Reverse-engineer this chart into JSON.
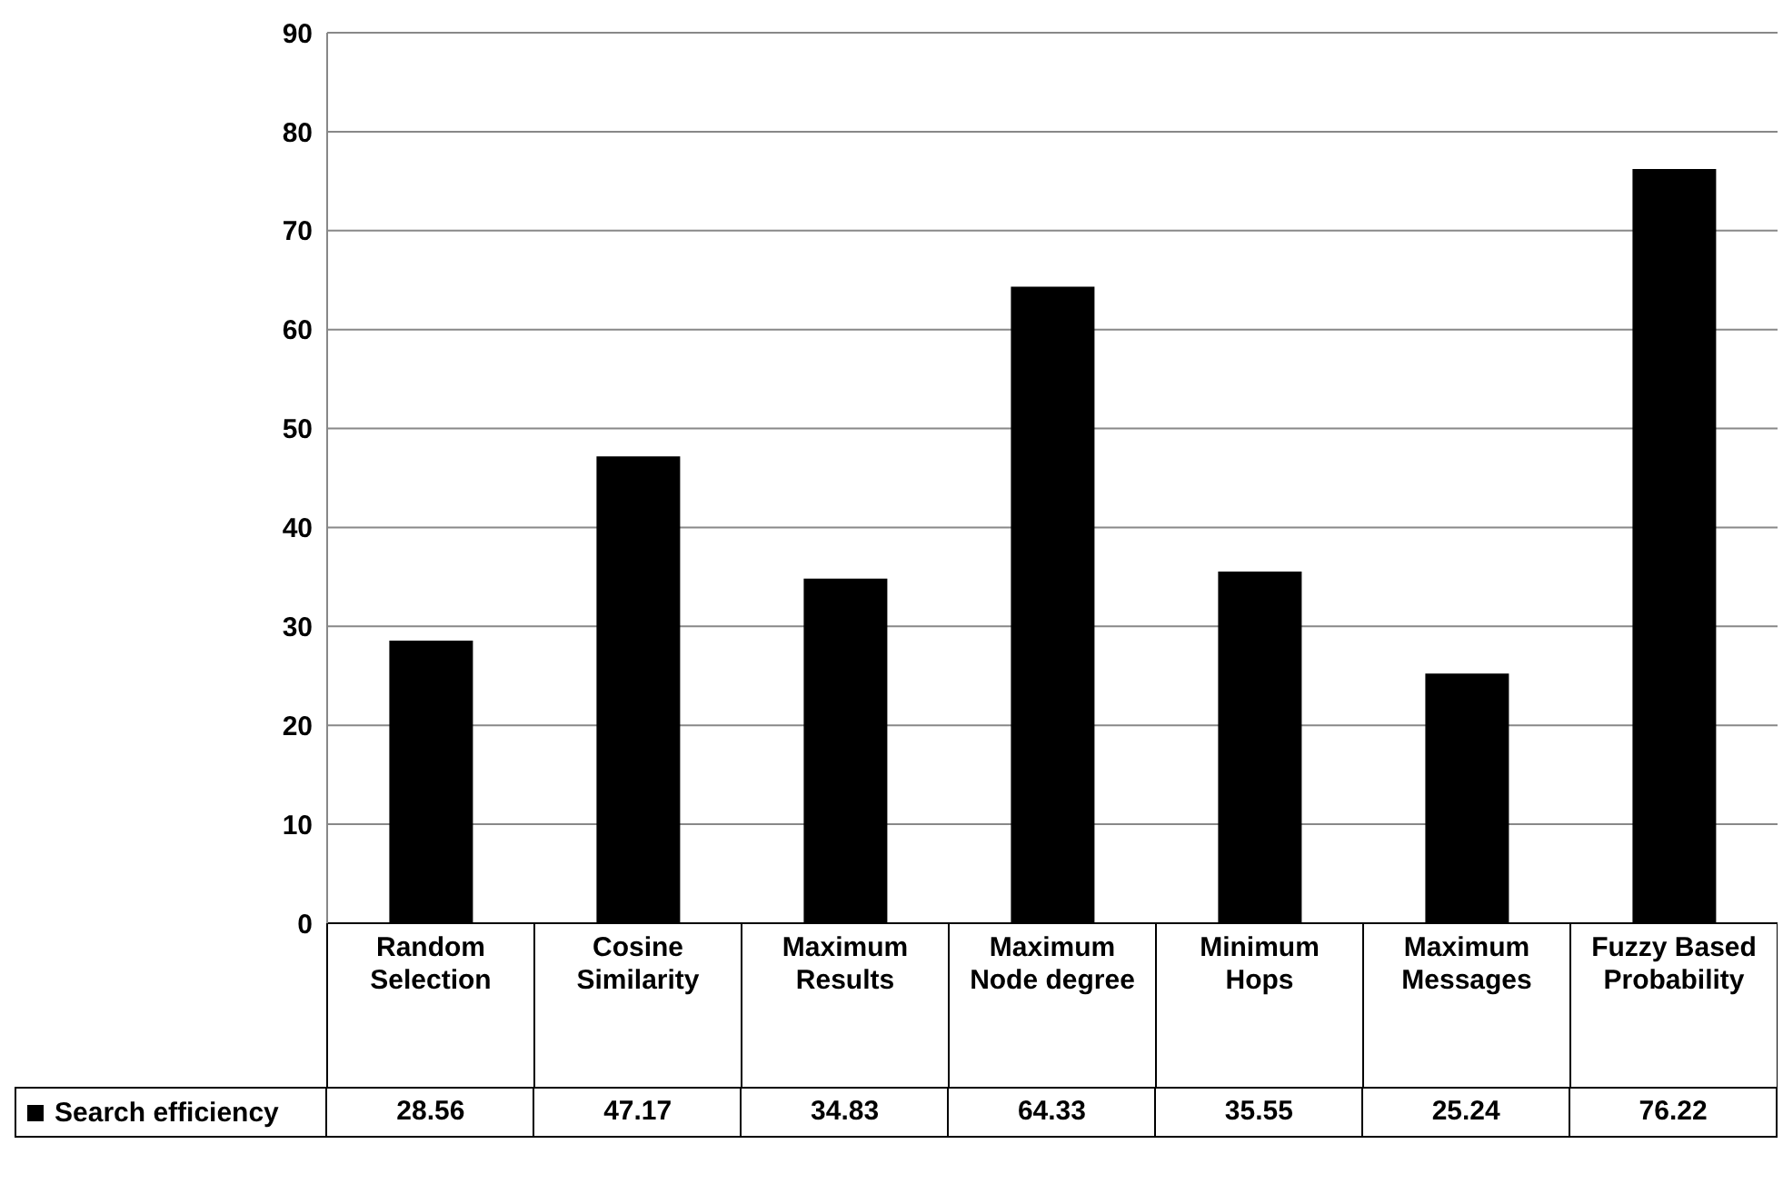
{
  "chart_data": {
    "type": "bar",
    "categories": [
      "Random Selection",
      "Cosine Similarity",
      "Maximum Results",
      "Maximum Node degree",
      "Minimum Hops",
      "Maximum Messages",
      "Fuzzy Based Probability"
    ],
    "series": [
      {
        "name": "Search efficiency",
        "color": "#000000",
        "values": [
          28.56,
          47.17,
          34.83,
          64.33,
          35.55,
          25.24,
          76.22
        ]
      }
    ],
    "ylim": [
      0,
      90
    ],
    "yticks": [
      0,
      10,
      20,
      30,
      40,
      50,
      60,
      70,
      80,
      90
    ],
    "grid": "y",
    "legend": "bottom",
    "data_labels": true
  }
}
